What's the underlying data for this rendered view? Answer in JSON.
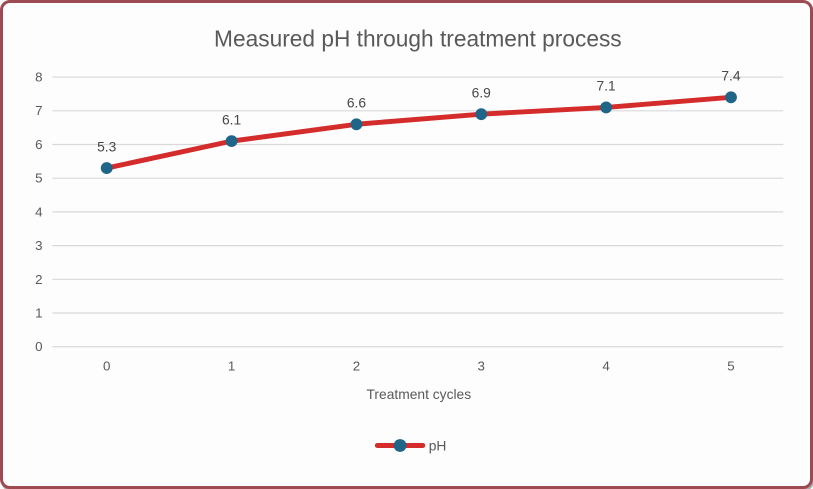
{
  "chart_data": {
    "type": "line",
    "title": "Measured pH through treatment process",
    "xlabel": "Treatment cycles",
    "ylabel": "",
    "categories": [
      0,
      1,
      2,
      3,
      4,
      5
    ],
    "series": [
      {
        "name": "pH",
        "values": [
          5.3,
          6.1,
          6.6,
          6.9,
          7.1,
          7.4
        ]
      }
    ],
    "data_labels": [
      "5.3",
      "6.1",
      "6.6",
      "6.9",
      "7.1",
      "7.4"
    ],
    "ylim": [
      0,
      8
    ],
    "yticks": [
      0,
      1,
      2,
      3,
      4,
      5,
      6,
      7,
      8
    ],
    "grid": true,
    "legend_position": "bottom",
    "colors": {
      "line": "#d42b2b",
      "marker": "#1f6587",
      "grid": "#d9d9d9",
      "text": "#595959",
      "data_label": "#474747",
      "border": "#9c4b52",
      "background": "#fdfdfd"
    }
  }
}
